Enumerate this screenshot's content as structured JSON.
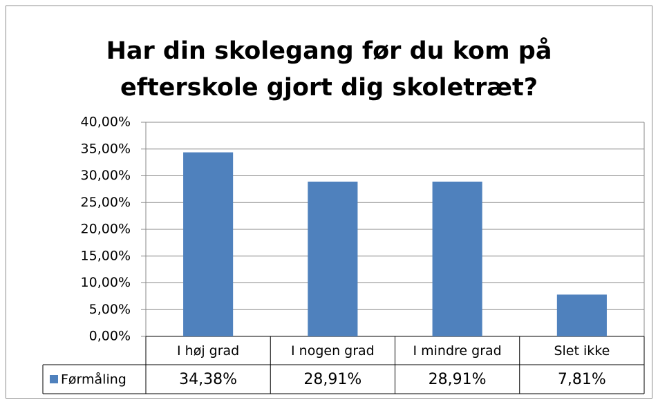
{
  "chart_data": {
    "type": "bar",
    "title": [
      "Har din skolegang før du kom på",
      "efterskole gjort dig skoletræt?"
    ],
    "categories": [
      "I høj grad",
      "I nogen grad",
      "I mindre grad",
      "Slet ikke"
    ],
    "series": [
      {
        "name": "Førmåling",
        "color": "#4f81bd",
        "values": [
          34.38,
          28.91,
          28.91,
          7.81
        ],
        "value_labels": [
          "34,38%",
          "28,91%",
          "28,91%",
          "7,81%"
        ]
      }
    ],
    "ylim": [
      0,
      40
    ],
    "yticks": [
      {
        "value": 0,
        "label": "0,00%"
      },
      {
        "value": 5,
        "label": "5,00%"
      },
      {
        "value": 10,
        "label": "10,00%"
      },
      {
        "value": 15,
        "label": "15,00%"
      },
      {
        "value": 20,
        "label": "20,00%"
      },
      {
        "value": 25,
        "label": "25,00%"
      },
      {
        "value": 30,
        "label": "30,00%"
      },
      {
        "value": 35,
        "label": "35,00%"
      },
      {
        "value": 40,
        "label": "40,00%"
      }
    ],
    "grid": true
  }
}
